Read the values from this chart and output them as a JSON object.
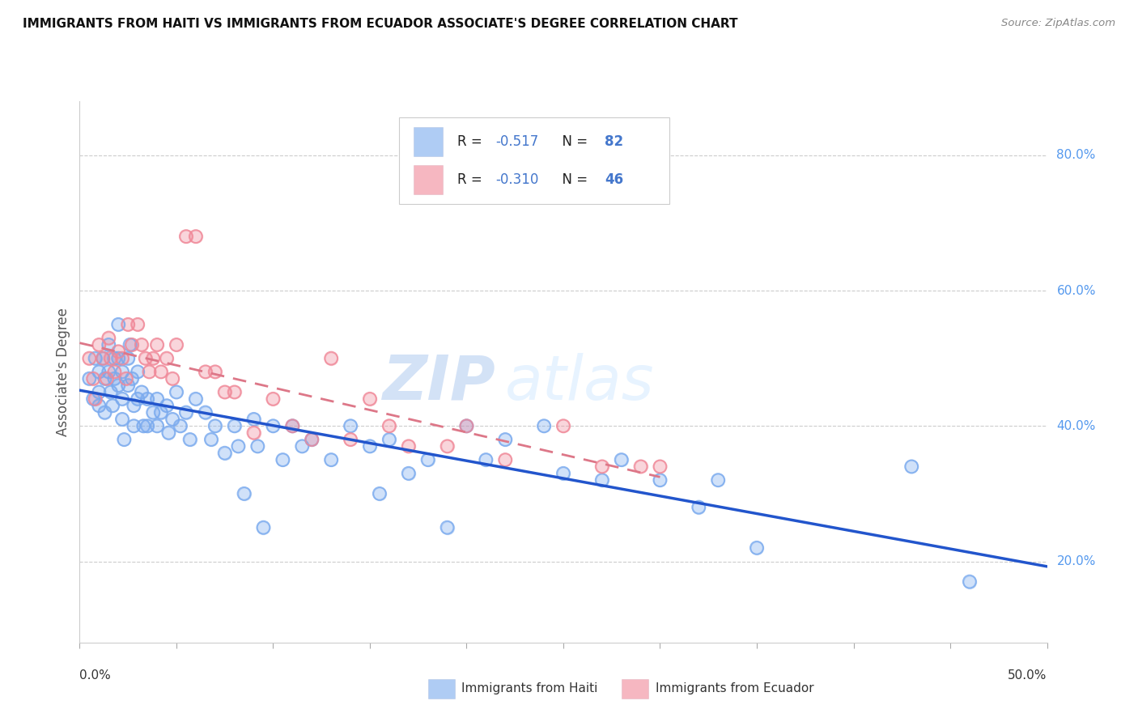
{
  "title": "IMMIGRANTS FROM HAITI VS IMMIGRANTS FROM ECUADOR ASSOCIATE'S DEGREE CORRELATION CHART",
  "source": "Source: ZipAtlas.com",
  "ylabel": "Associate's Degree",
  "x_label_haiti": "Immigrants from Haiti",
  "x_label_ecuador": "Immigrants from Ecuador",
  "xlim": [
    0.0,
    0.5
  ],
  "ylim": [
    0.08,
    0.88
  ],
  "xtick_left_label": "0.0%",
  "xtick_right_label": "50.0%",
  "yticks_right": [
    0.2,
    0.4,
    0.6,
    0.8
  ],
  "ytick_labels_right": [
    "20.0%",
    "40.0%",
    "60.0%",
    "80.0%"
  ],
  "haiti_color": "#7aaaee",
  "ecuador_color": "#f08898",
  "haiti_R": -0.517,
  "haiti_N": 82,
  "ecuador_R": -0.31,
  "ecuador_N": 46,
  "haiti_line_color": "#2255cc",
  "ecuador_line_color": "#dd7788",
  "watermark_zip": "ZIP",
  "watermark_atlas": "atlas",
  "haiti_x": [
    0.005,
    0.007,
    0.008,
    0.01,
    0.01,
    0.01,
    0.012,
    0.013,
    0.013,
    0.015,
    0.015,
    0.016,
    0.017,
    0.018,
    0.018,
    0.02,
    0.02,
    0.02,
    0.022,
    0.022,
    0.022,
    0.023,
    0.025,
    0.025,
    0.026,
    0.027,
    0.028,
    0.028,
    0.03,
    0.03,
    0.032,
    0.033,
    0.035,
    0.035,
    0.038,
    0.04,
    0.04,
    0.042,
    0.045,
    0.046,
    0.048,
    0.05,
    0.052,
    0.055,
    0.057,
    0.06,
    0.065,
    0.068,
    0.07,
    0.075,
    0.08,
    0.082,
    0.085,
    0.09,
    0.092,
    0.095,
    0.1,
    0.105,
    0.11,
    0.115,
    0.12,
    0.13,
    0.14,
    0.15,
    0.155,
    0.16,
    0.17,
    0.18,
    0.19,
    0.2,
    0.21,
    0.22,
    0.24,
    0.25,
    0.27,
    0.28,
    0.3,
    0.32,
    0.33,
    0.35,
    0.43,
    0.46
  ],
  "haiti_y": [
    0.47,
    0.44,
    0.5,
    0.48,
    0.45,
    0.43,
    0.5,
    0.47,
    0.42,
    0.52,
    0.48,
    0.45,
    0.43,
    0.5,
    0.47,
    0.55,
    0.5,
    0.46,
    0.48,
    0.44,
    0.41,
    0.38,
    0.5,
    0.46,
    0.52,
    0.47,
    0.43,
    0.4,
    0.48,
    0.44,
    0.45,
    0.4,
    0.44,
    0.4,
    0.42,
    0.44,
    0.4,
    0.42,
    0.43,
    0.39,
    0.41,
    0.45,
    0.4,
    0.42,
    0.38,
    0.44,
    0.42,
    0.38,
    0.4,
    0.36,
    0.4,
    0.37,
    0.3,
    0.41,
    0.37,
    0.25,
    0.4,
    0.35,
    0.4,
    0.37,
    0.38,
    0.35,
    0.4,
    0.37,
    0.3,
    0.38,
    0.33,
    0.35,
    0.25,
    0.4,
    0.35,
    0.38,
    0.4,
    0.33,
    0.32,
    0.35,
    0.32,
    0.28,
    0.32,
    0.22,
    0.34,
    0.17
  ],
  "ecuador_x": [
    0.005,
    0.007,
    0.008,
    0.01,
    0.012,
    0.014,
    0.015,
    0.016,
    0.018,
    0.02,
    0.022,
    0.024,
    0.025,
    0.027,
    0.03,
    0.032,
    0.034,
    0.036,
    0.038,
    0.04,
    0.042,
    0.045,
    0.048,
    0.05,
    0.055,
    0.06,
    0.065,
    0.07,
    0.075,
    0.08,
    0.09,
    0.1,
    0.11,
    0.12,
    0.13,
    0.14,
    0.15,
    0.16,
    0.17,
    0.19,
    0.2,
    0.22,
    0.25,
    0.27,
    0.29,
    0.3
  ],
  "ecuador_y": [
    0.5,
    0.47,
    0.44,
    0.52,
    0.5,
    0.47,
    0.53,
    0.5,
    0.48,
    0.51,
    0.5,
    0.47,
    0.55,
    0.52,
    0.55,
    0.52,
    0.5,
    0.48,
    0.5,
    0.52,
    0.48,
    0.5,
    0.47,
    0.52,
    0.68,
    0.68,
    0.48,
    0.48,
    0.45,
    0.45,
    0.39,
    0.44,
    0.4,
    0.38,
    0.5,
    0.38,
    0.44,
    0.4,
    0.37,
    0.37,
    0.4,
    0.35,
    0.4,
    0.34,
    0.34,
    0.34
  ]
}
